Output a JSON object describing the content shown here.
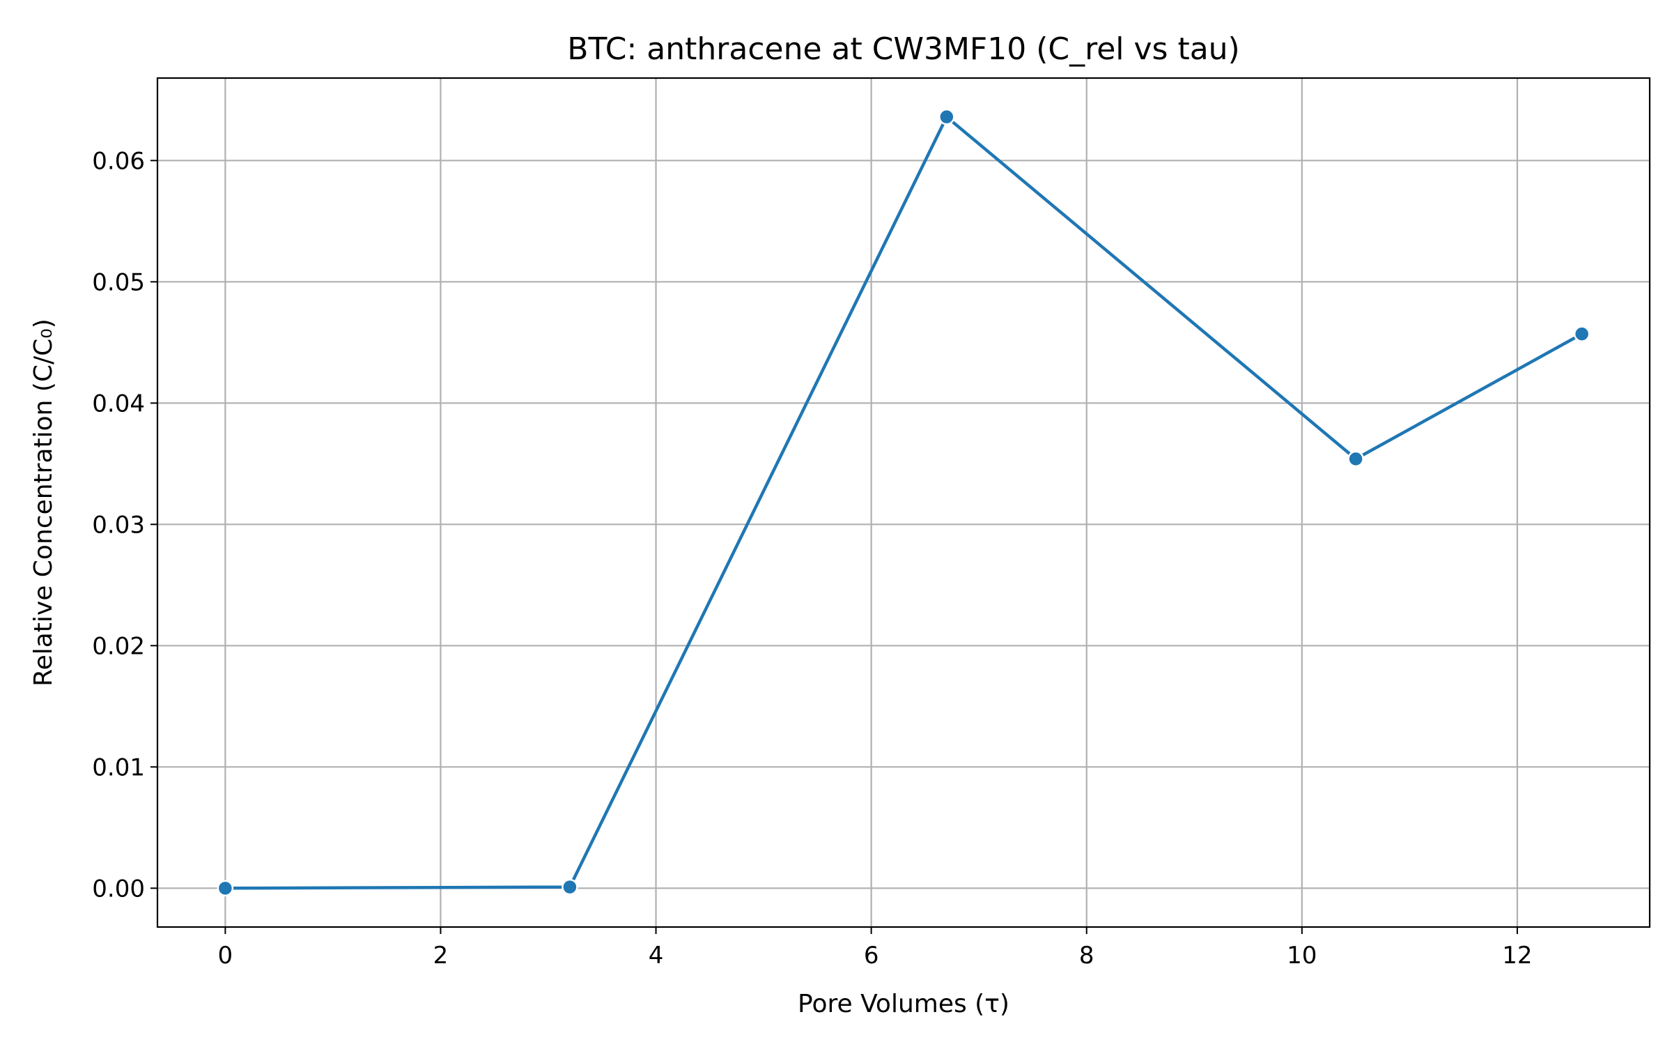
{
  "chart_data": {
    "type": "line",
    "title": "BTC: anthracene at CW3MF10 (C_rel vs tau)",
    "xlabel": "Pore Volumes (τ)",
    "ylabel": "Relative Concentration (C/C₀)",
    "x": [
      0,
      3.2,
      6.7,
      10.5,
      12.6
    ],
    "series": [
      {
        "values": [
          0.0,
          0.0001,
          0.0636,
          0.0354,
          0.0457
        ]
      }
    ],
    "xlim": [
      -0.63,
      13.23
    ],
    "ylim": [
      -0.0032,
      0.0668
    ],
    "xticks": [
      0,
      2,
      4,
      6,
      8,
      10,
      12
    ],
    "xtick_labels": [
      "0",
      "2",
      "4",
      "6",
      "8",
      "10",
      "12"
    ],
    "yticks": [
      0.0,
      0.01,
      0.02,
      0.03,
      0.04,
      0.05,
      0.06
    ],
    "ytick_labels": [
      "0.00",
      "0.01",
      "0.02",
      "0.03",
      "0.04",
      "0.05",
      "0.06"
    ],
    "grid": true,
    "colors": {
      "line": "#1f77b4",
      "grid": "#b0b0b0"
    }
  }
}
